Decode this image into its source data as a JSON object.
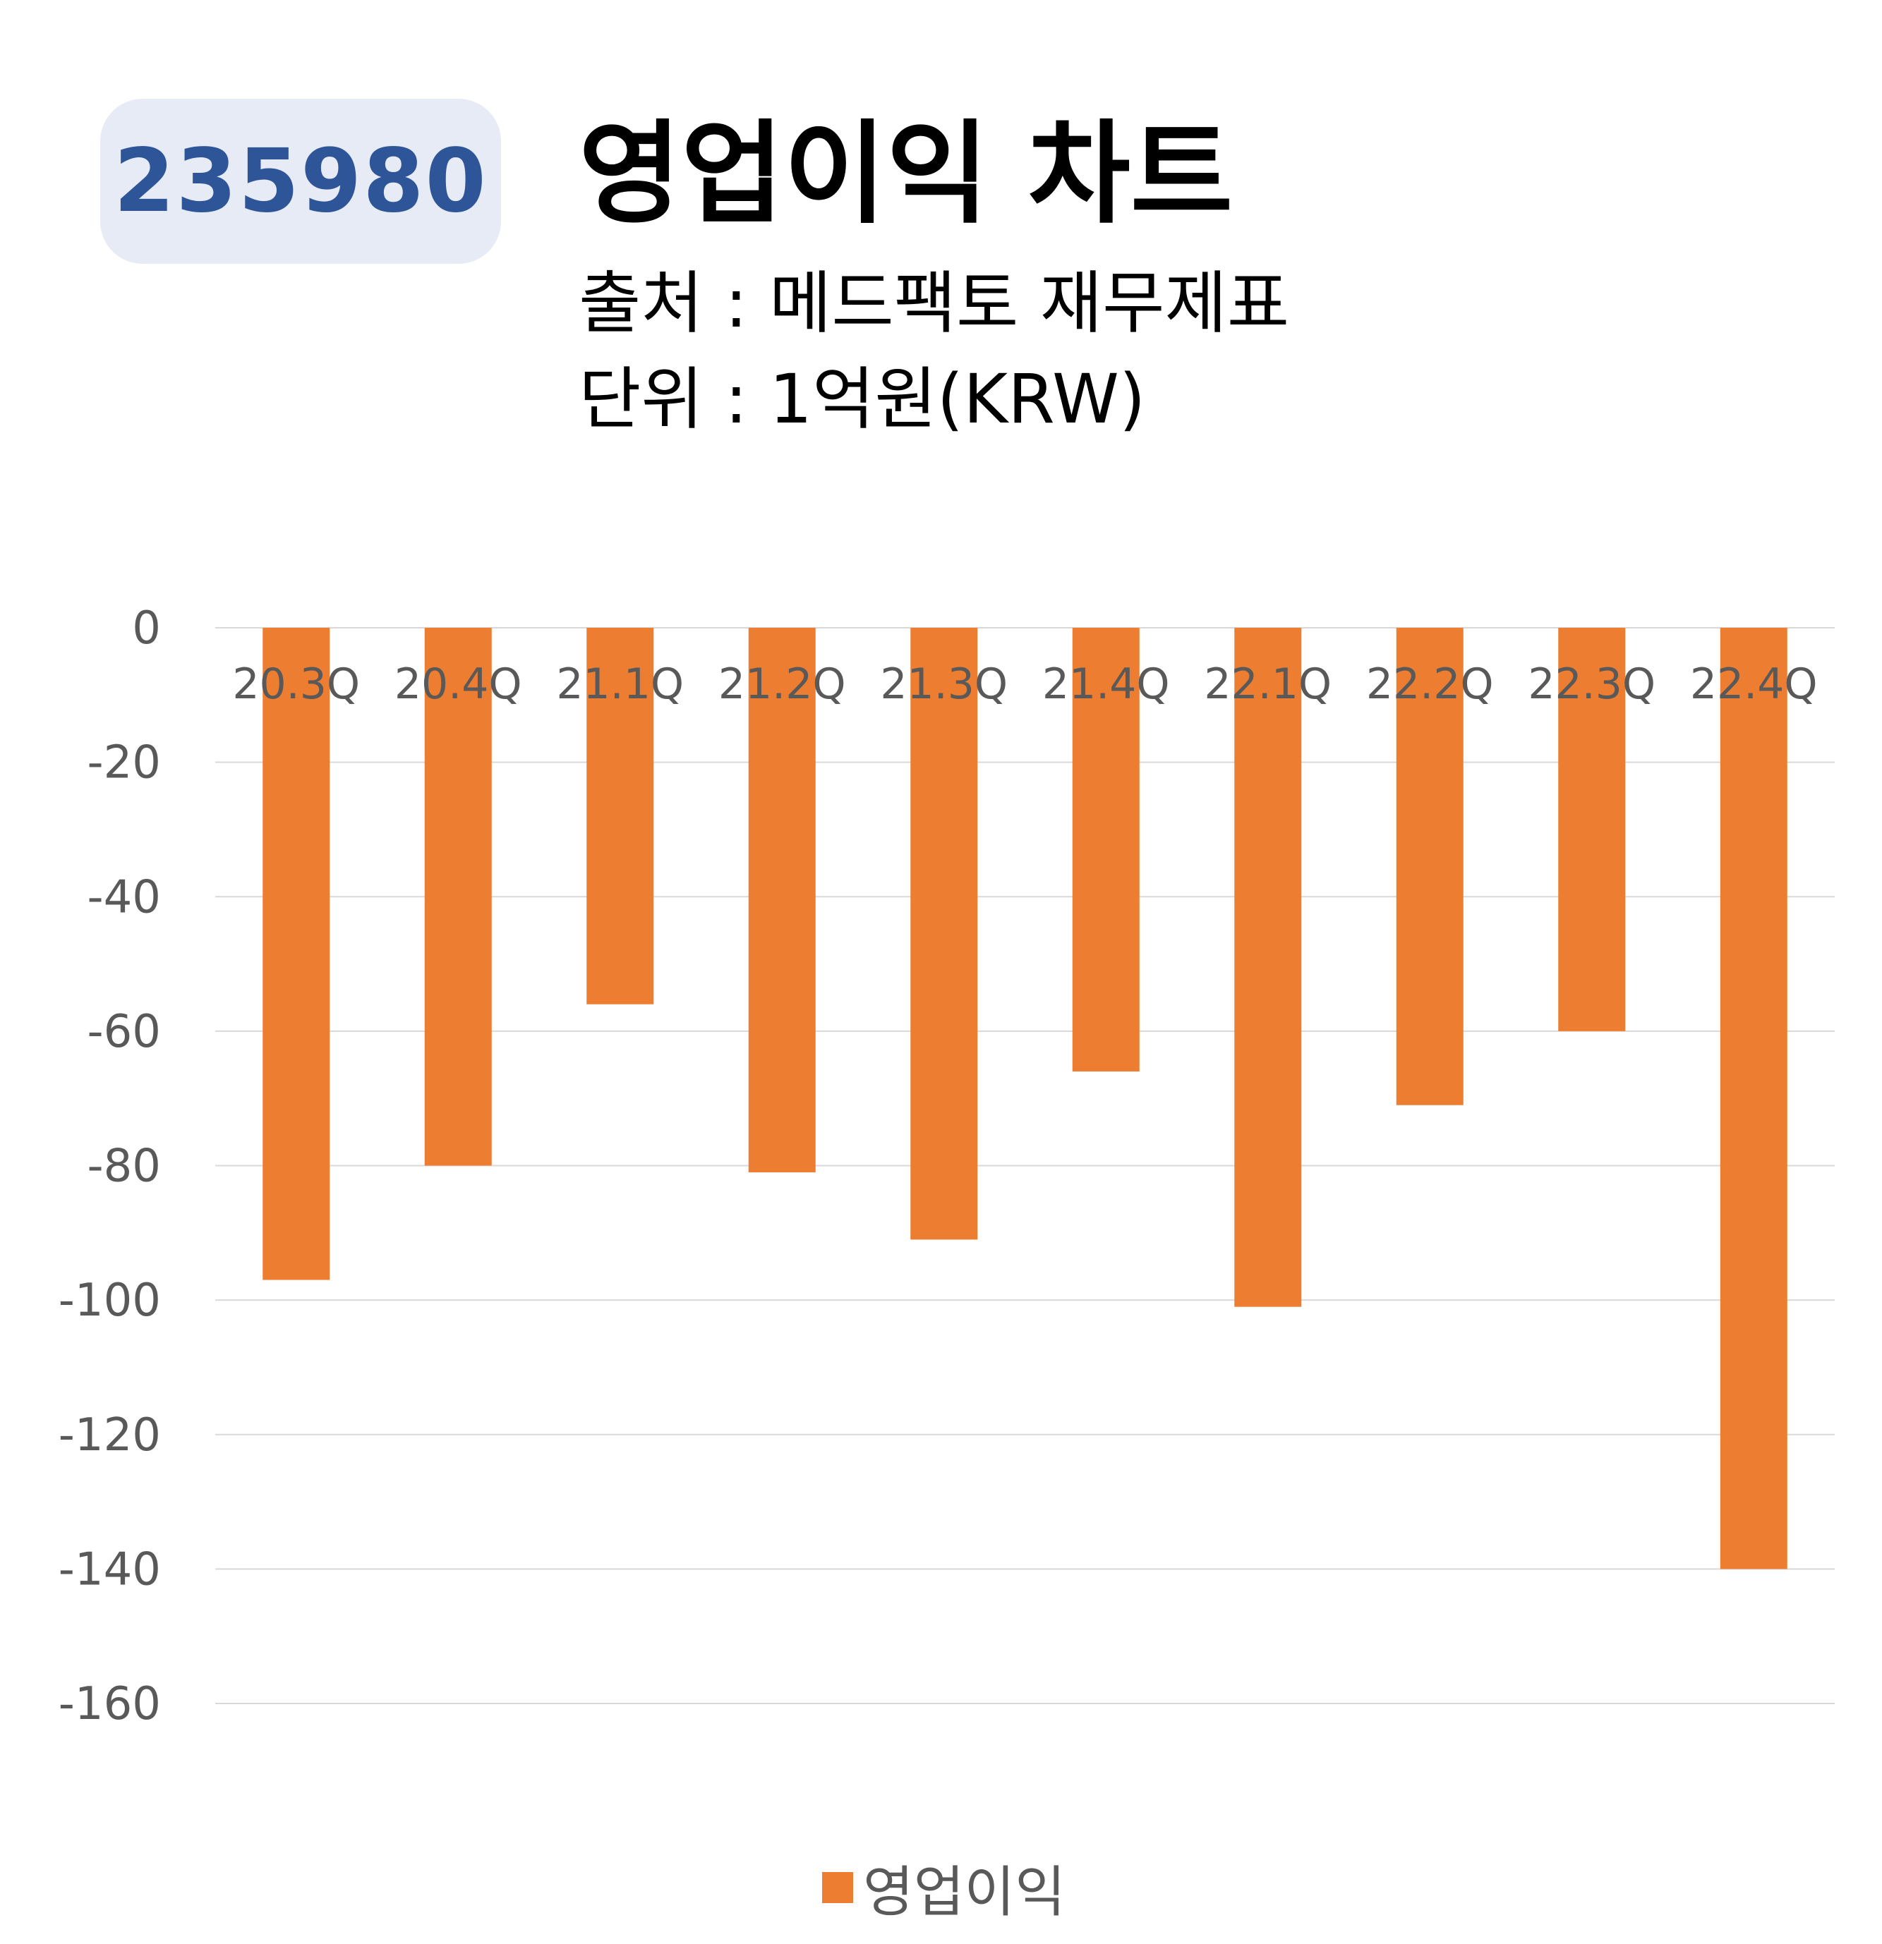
{
  "header": {
    "code": "235980",
    "title": "영업이익 차트",
    "source": "출처 : 메드팩토 재무제표",
    "unit": "단위 : 1억원(KRW)"
  },
  "colors": {
    "bar": "#ED7D31",
    "badge_bg": "#E6EBF5",
    "badge_text": "#2E5597",
    "grid": "#D9D9D9",
    "label": "#595959"
  },
  "chart_data": {
    "type": "bar",
    "title": "영업이익 차트",
    "categories": [
      "20.3Q",
      "20.4Q",
      "21.1Q",
      "21.2Q",
      "21.3Q",
      "21.4Q",
      "22.1Q",
      "22.2Q",
      "22.3Q",
      "22.4Q"
    ],
    "series": [
      {
        "name": "영업이익",
        "values": [
          -97,
          -80,
          -56,
          -81,
          -91,
          -66,
          -101,
          -71,
          -60,
          -140
        ]
      }
    ],
    "ylim": [
      -160,
      0
    ],
    "yticks": [
      "0",
      "-20",
      "-40",
      "-60",
      "-80",
      "-100",
      "-120",
      "-140",
      "-160"
    ],
    "ytick_values": [
      0,
      -20,
      -40,
      -60,
      -80,
      -100,
      -120,
      -140,
      -160
    ],
    "grid": true,
    "legend": "bottom"
  }
}
